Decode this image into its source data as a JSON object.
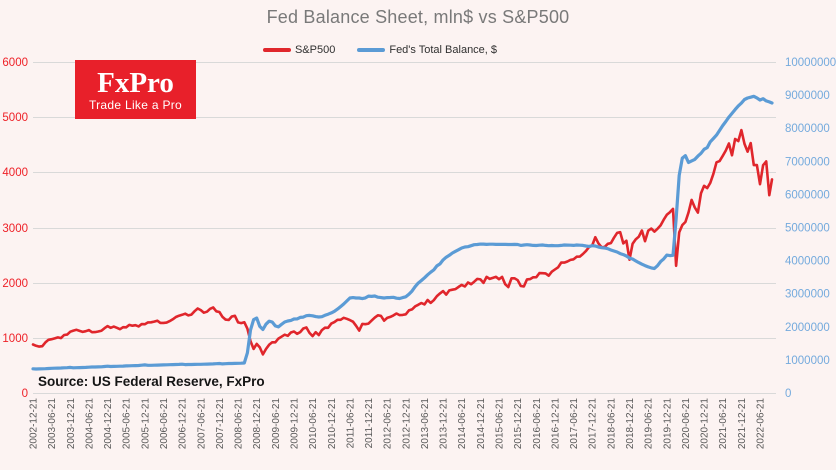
{
  "page": {
    "background": "#fcf3f2"
  },
  "header": {
    "title": "Fed Balance Sheet, mln$ vs S&P500"
  },
  "legend": [
    {
      "label": "S&P500",
      "color": "#e0262c"
    },
    {
      "label": "Fed's Total Balance, $",
      "color": "#5b9bd5"
    }
  ],
  "logo": {
    "name": "FxPro",
    "tagline": "Trade Like a Pro",
    "background": "#e8202a",
    "text_color": "#ffffff"
  },
  "source_note": "Source: US Federal Reserve, FxPro",
  "chart_data": {
    "type": "line",
    "title": "Fed Balance Sheet, mln$ vs S&P500",
    "legend_position": "top",
    "grid": true,
    "grid_color": "#d9d9d9",
    "x_start": "2002-12-21",
    "x_interval": "monthly",
    "x_tick_labels": [
      "2002-12-21",
      "2003-06-21",
      "2003-12-21",
      "2004-06-21",
      "2004-12-21",
      "2005-06-21",
      "2005-12-21",
      "2006-06-21",
      "2006-12-21",
      "2007-06-21",
      "2007-12-21",
      "2008-06-21",
      "2008-12-21",
      "2009-06-21",
      "2009-12-21",
      "2010-06-21",
      "2010-12-21",
      "2011-06-21",
      "2011-12-21",
      "2012-06-21",
      "2012-12-21",
      "2013-06-21",
      "2013-12-21",
      "2014-06-21",
      "2014-12-21",
      "2015-06-21",
      "2015-12-21",
      "2016-06-21",
      "2016-12-21",
      "2017-06-21",
      "2017-12-21",
      "2018-06-21",
      "2018-12-21",
      "2019-06-21",
      "2019-12-21",
      "2020-06-21",
      "2020-12-21",
      "2021-06-21",
      "2021-12-21",
      "2022-06-21"
    ],
    "x_label_color": "#595959",
    "left_axis": {
      "series": "S&P500",
      "range": [
        0,
        6000
      ],
      "ticks": [
        0,
        1000,
        2000,
        3000,
        4000,
        5000,
        6000
      ],
      "label_color": "#ee2128"
    },
    "right_axis": {
      "series": "Fed's Total Balance, $",
      "range": [
        0,
        10000000
      ],
      "ticks": [
        0,
        1000000,
        2000000,
        3000000,
        4000000,
        5000000,
        6000000,
        7000000,
        8000000,
        9000000,
        10000000
      ],
      "label_color": "#74aadd"
    },
    "series": [
      {
        "name": "S&P500",
        "axis": "left",
        "color": "#e0262c",
        "stroke_width": 2.6,
        "values": [
          880,
          856,
          841,
          848,
          917,
          964,
          975,
          990,
          1008,
          996,
          1051,
          1058,
          1112,
          1131,
          1145,
          1126,
          1107,
          1121,
          1141,
          1102,
          1104,
          1115,
          1130,
          1174,
          1212,
          1181,
          1204,
          1181,
          1157,
          1192,
          1191,
          1234,
          1220,
          1229,
          1207,
          1249,
          1248,
          1280,
          1281,
          1295,
          1311,
          1270,
          1270,
          1277,
          1304,
          1336,
          1378,
          1401,
          1418,
          1438,
          1407,
          1421,
          1482,
          1531,
          1503,
          1455,
          1474,
          1527,
          1549,
          1481,
          1468,
          1379,
          1331,
          1323,
          1386,
          1400,
          1280,
          1267,
          1283,
          1166,
          940,
          800,
          890,
          826,
          700,
          798,
          873,
          919,
          919,
          987,
          1021,
          1057,
          1036,
          1096,
          1115,
          1074,
          1104,
          1169,
          1187,
          1089,
          1031,
          1102,
          1049,
          1141,
          1183,
          1181,
          1258,
          1286,
          1327,
          1326,
          1364,
          1345,
          1321,
          1292,
          1219,
          1131,
          1253,
          1247,
          1258,
          1312,
          1366,
          1408,
          1398,
          1310,
          1362,
          1379,
          1407,
          1441,
          1412,
          1416,
          1426,
          1498,
          1515,
          1569,
          1598,
          1631,
          1606,
          1686,
          1633,
          1682,
          1757,
          1806,
          1848,
          1783,
          1859,
          1872,
          1884,
          1924,
          1960,
          1931,
          2003,
          1972,
          2018,
          2068,
          2059,
          1995,
          2105,
          2068,
          2086,
          2107,
          2063,
          2104,
          1972,
          1920,
          2079,
          2080,
          2044,
          1940,
          1932,
          2060,
          2065,
          2097,
          2099,
          2174,
          2171,
          2168,
          2126,
          2199,
          2239,
          2279,
          2364,
          2363,
          2384,
          2412,
          2423,
          2470,
          2472,
          2519,
          2575,
          2648,
          2674,
          2824,
          2714,
          2641,
          2648,
          2705,
          2718,
          2816,
          2902,
          2914,
          2712,
          2760,
          2416,
          2704,
          2785,
          2834,
          2946,
          2752,
          2942,
          2980,
          2926,
          2977,
          3038,
          3141,
          3231,
          3278,
          3338,
          2305,
          2912,
          3044,
          3100,
          3271,
          3500,
          3363,
          3270,
          3622,
          3756,
          3714,
          3811,
          3973,
          4181,
          4204,
          4298,
          4395,
          4523,
          4308,
          4605,
          4567,
          4766,
          4516,
          4374,
          4530,
          4132,
          4132,
          3785,
          4130,
          4199,
          3586,
          3872
        ]
      },
      {
        "name": "Fed's Total Balance, $",
        "axis": "right",
        "color": "#5b9bd5",
        "stroke_width": 3.2,
        "values": [
          732000,
          725000,
          728000,
          730000,
          735000,
          741000,
          745000,
          748000,
          751000,
          755000,
          760000,
          765000,
          772000,
          760000,
          763000,
          766000,
          770000,
          774000,
          780000,
          784000,
          786000,
          789000,
          792000,
          800000,
          811000,
          800000,
          803000,
          806000,
          810000,
          814000,
          818000,
          822000,
          825000,
          828000,
          832000,
          840000,
          848000,
          836000,
          838000,
          840000,
          843000,
          846000,
          850000,
          852000,
          854000,
          857000,
          860000,
          865000,
          869000,
          858000,
          860000,
          862000,
          864000,
          866000,
          868000,
          870000,
          872000,
          875000,
          878000,
          885000,
          891000,
          880000,
          885000,
          890000,
          892000,
          894000,
          897000,
          900000,
          905000,
          1213000,
          1903000,
          2214000,
          2266000,
          2013000,
          1918000,
          2079000,
          2169000,
          2146000,
          2026000,
          1998000,
          2072000,
          2144000,
          2174000,
          2192000,
          2237000,
          2239000,
          2285000,
          2292000,
          2335000,
          2345000,
          2333000,
          2307000,
          2297000,
          2304000,
          2346000,
          2381000,
          2421000,
          2468000,
          2535000,
          2610000,
          2689000,
          2779000,
          2869000,
          2882000,
          2871000,
          2871000,
          2853000,
          2874000,
          2928000,
          2919000,
          2932000,
          2895000,
          2882000,
          2870000,
          2882000,
          2885000,
          2891000,
          2864000,
          2855000,
          2882000,
          2907000,
          2983000,
          3078000,
          3210000,
          3320000,
          3400000,
          3480000,
          3570000,
          3650000,
          3720000,
          3840000,
          3900000,
          4020000,
          4102000,
          4160000,
          4230000,
          4280000,
          4330000,
          4380000,
          4410000,
          4420000,
          4450000,
          4480000,
          4486000,
          4498000,
          4497000,
          4490000,
          4495000,
          4494000,
          4490000,
          4493000,
          4490000,
          4488000,
          4485000,
          4487000,
          4490000,
          4487000,
          4460000,
          4470000,
          4480000,
          4470000,
          4460000,
          4455000,
          4465000,
          4470000,
          4460000,
          4450000,
          4455000,
          4451000,
          4450000,
          4460000,
          4470000,
          4468000,
          4465000,
          4460000,
          4470000,
          4466000,
          4460000,
          4440000,
          4430000,
          4449000,
          4440000,
          4410000,
          4390000,
          4380000,
          4360000,
          4320000,
          4290000,
          4260000,
          4210000,
          4180000,
          4140000,
          4076000,
          4047000,
          3990000,
          3940000,
          3890000,
          3850000,
          3810000,
          3780000,
          3760000,
          3845000,
          3970000,
          4050000,
          4166000,
          4151000,
          4160000,
          5254000,
          6573000,
          7097000,
          7169000,
          6965000,
          7011000,
          7056000,
          7157000,
          7243000,
          7363000,
          7415000,
          7590000,
          7688000,
          7793000,
          7935000,
          8078000,
          8202000,
          8336000,
          8448000,
          8563000,
          8674000,
          8757000,
          8867000,
          8911000,
          8937000,
          8965000,
          8914000,
          8851000,
          8890000,
          8826000,
          8796000,
          8760000
        ]
      }
    ]
  }
}
